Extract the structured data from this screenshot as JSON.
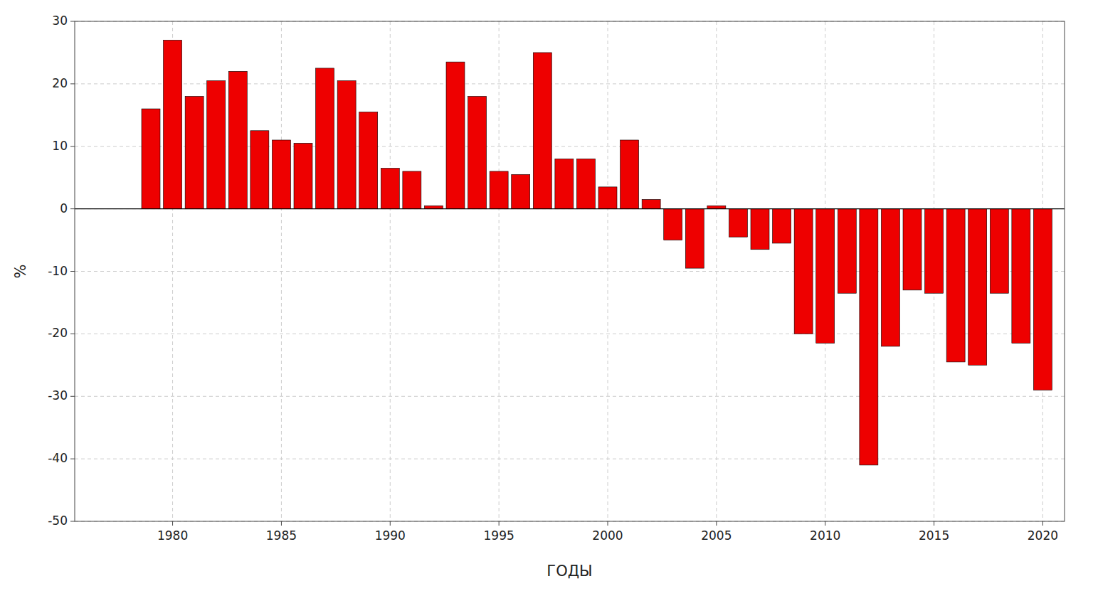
{
  "chart_data": {
    "type": "bar",
    "x": [
      1979,
      1980,
      1981,
      1982,
      1983,
      1984,
      1985,
      1986,
      1987,
      1988,
      1989,
      1990,
      1991,
      1992,
      1993,
      1994,
      1995,
      1996,
      1997,
      1998,
      1999,
      2000,
      2001,
      2002,
      2003,
      2004,
      2005,
      2006,
      2007,
      2008,
      2009,
      2010,
      2011,
      2012,
      2013,
      2014,
      2015,
      2016,
      2017,
      2018,
      2019,
      2020
    ],
    "values": [
      16.0,
      27.0,
      18.0,
      20.5,
      22.0,
      12.5,
      11.0,
      10.5,
      22.5,
      20.5,
      15.5,
      6.5,
      6.0,
      0.5,
      23.5,
      18.0,
      6.0,
      5.5,
      25.0,
      8.0,
      8.0,
      3.5,
      11.0,
      1.5,
      -5.0,
      -9.5,
      0.5,
      -4.5,
      -6.5,
      -5.5,
      -20.0,
      -21.5,
      -13.5,
      -41.0,
      -22.0,
      -13.0,
      -13.5,
      -24.5,
      -25.0,
      -13.5,
      -21.5,
      -29.0
    ],
    "color": "#ee0000",
    "xlabel": "ГОДЫ",
    "ylabel": "%",
    "xlim": [
      1975.5,
      2021.0
    ],
    "ylim": [
      -50,
      30
    ],
    "xticks": [
      1980,
      1985,
      1990,
      1995,
      2000,
      2005,
      2010,
      2015,
      2020
    ],
    "yticks": [
      -50,
      -40,
      -30,
      -20,
      -10,
      0,
      10,
      20,
      30
    ],
    "grid": true
  }
}
